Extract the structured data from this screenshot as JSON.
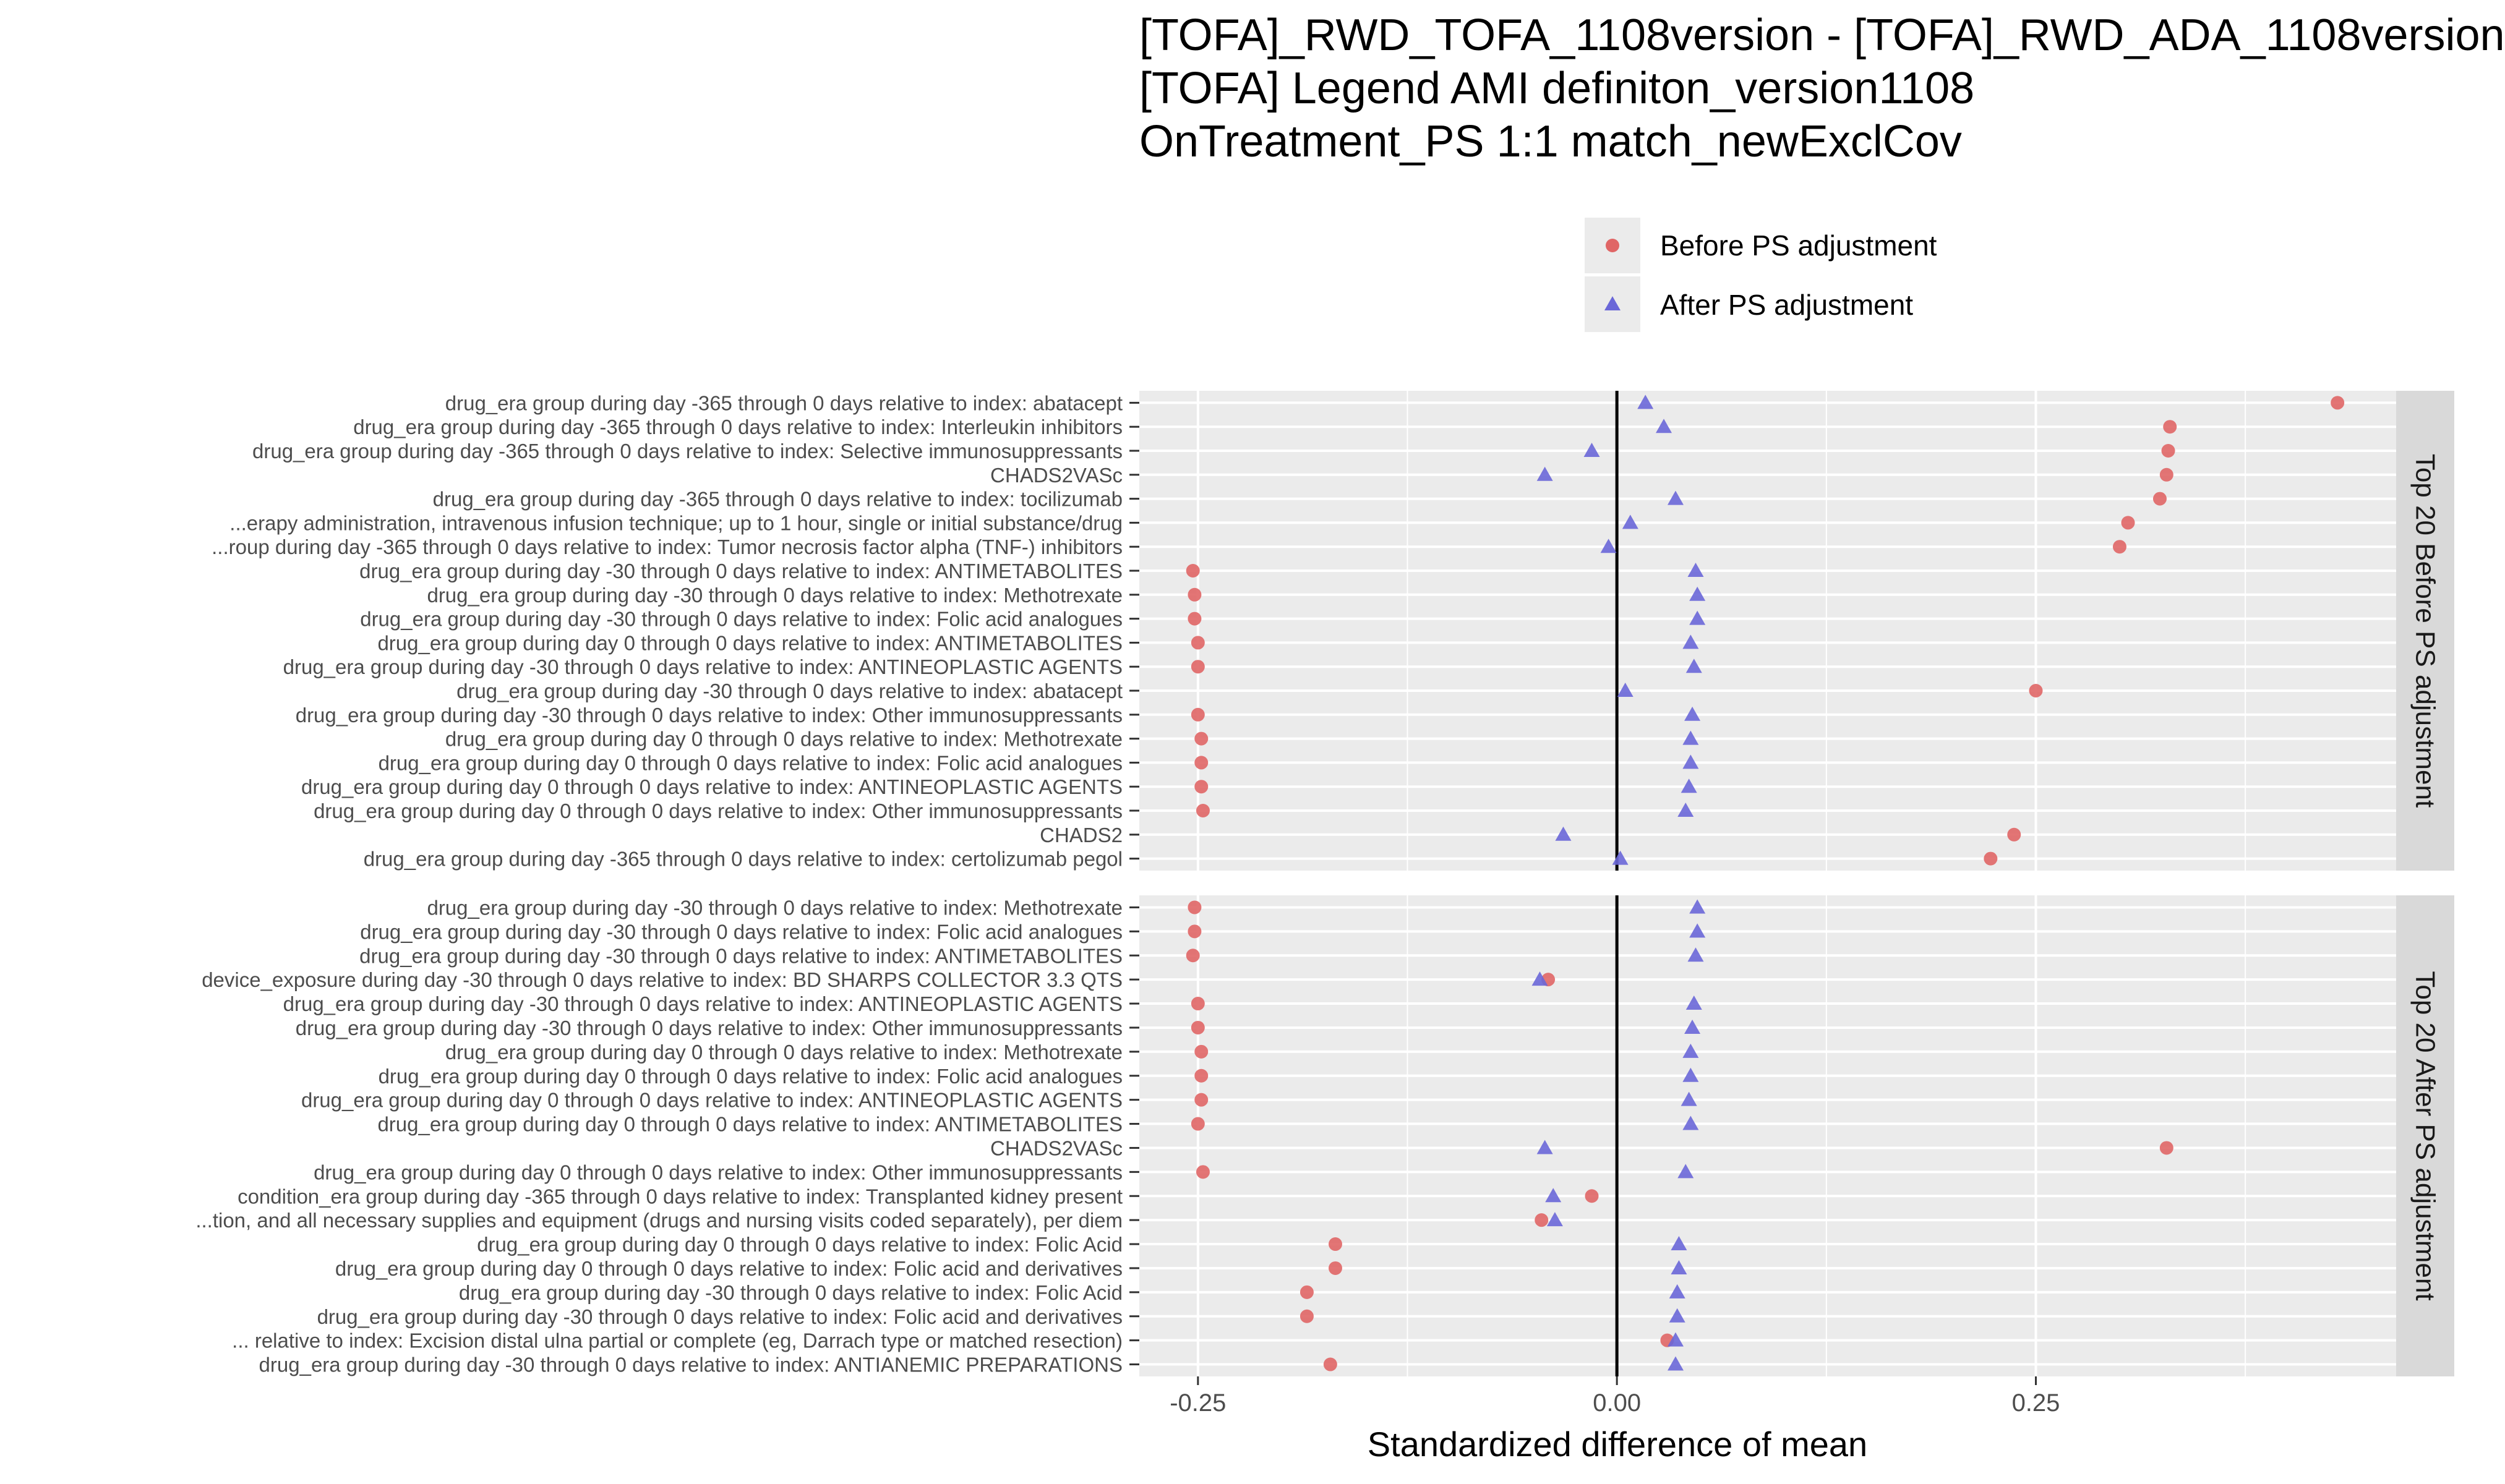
{
  "chart_data": {
    "type": "scatter",
    "title_lines": [
      "[TOFA]_RWD_TOFA_1108version - [TOFA]_RWD_ADA_1108version",
      "[TOFA] Legend AMI definiton_version1108",
      "OnTreatment_PS 1:1 match_newExclCov"
    ],
    "xlabel": "Standardized difference of mean",
    "x_ticks": [
      -0.25,
      0,
      0.25
    ],
    "x_tick_labels": [
      "-0.25",
      "0.00",
      "0.25"
    ],
    "xlim": [
      -0.285,
      0.465
    ],
    "grid": true,
    "reference_line_x": 0,
    "legend": {
      "placement": "top",
      "entries": [
        {
          "name": "Before PS adjustment",
          "shape": "circle",
          "color": "#E06666"
        },
        {
          "name": "After PS adjustment",
          "shape": "triangle",
          "color": "#6A67D8"
        }
      ]
    },
    "panels": [
      {
        "strip_label": "Top 20 Before PS adjustment",
        "rows": [
          {
            "label": "drug_era group during day -365 through 0 days relative to index: abatacept",
            "before": 0.43,
            "after": 0.017
          },
          {
            "label": "drug_era group during day -365 through 0 days relative to index: Interleukin inhibitors",
            "before": 0.33,
            "after": 0.028
          },
          {
            "label": "drug_era group during day -365 through 0 days relative to index: Selective immunosuppressants",
            "before": 0.329,
            "after": -0.015
          },
          {
            "label": "CHADS2VASc",
            "before": 0.328,
            "after": -0.043
          },
          {
            "label": "drug_era group during day -365 through 0 days relative to index: tocilizumab",
            "before": 0.324,
            "after": 0.035
          },
          {
            "label": "...erapy administration, intravenous infusion technique; up to 1 hour, single or initial substance/drug",
            "before": 0.305,
            "after": 0.008
          },
          {
            "label": "...roup during day -365 through 0 days relative to index: Tumor necrosis factor alpha (TNF-) inhibitors",
            "before": 0.3,
            "after": -0.005
          },
          {
            "label": "drug_era group during day -30 through 0 days relative to index: ANTIMETABOLITES",
            "before": -0.253,
            "after": 0.047
          },
          {
            "label": "drug_era group during day -30 through 0 days relative to index: Methotrexate",
            "before": -0.252,
            "after": 0.048
          },
          {
            "label": "drug_era group during day -30 through 0 days relative to index: Folic acid analogues",
            "before": -0.252,
            "after": 0.048
          },
          {
            "label": "drug_era group during day 0 through 0 days relative to index: ANTIMETABOLITES",
            "before": -0.25,
            "after": 0.044
          },
          {
            "label": "drug_era group during day -30 through 0 days relative to index: ANTINEOPLASTIC AGENTS",
            "before": -0.25,
            "after": 0.046
          },
          {
            "label": "drug_era group during day -30 through 0 days relative to index: abatacept",
            "before": 0.25,
            "after": 0.005
          },
          {
            "label": "drug_era group during day -30 through 0 days relative to index: Other immunosuppressants",
            "before": -0.25,
            "after": 0.045
          },
          {
            "label": "drug_era group during day 0 through 0 days relative to index: Methotrexate",
            "before": -0.248,
            "after": 0.044
          },
          {
            "label": "drug_era group during day 0 through 0 days relative to index: Folic acid analogues",
            "before": -0.248,
            "after": 0.044
          },
          {
            "label": "drug_era group during day 0 through 0 days relative to index: ANTINEOPLASTIC AGENTS",
            "before": -0.248,
            "after": 0.043
          },
          {
            "label": "drug_era group during day 0 through 0 days relative to index: Other immunosuppressants",
            "before": -0.247,
            "after": 0.041
          },
          {
            "label": "CHADS2",
            "before": 0.237,
            "after": -0.032
          },
          {
            "label": "drug_era group during day -365 through 0 days relative to index: certolizumab pegol",
            "before": 0.223,
            "after": 0.002
          }
        ]
      },
      {
        "strip_label": "Top 20 After PS adjustment",
        "rows": [
          {
            "label": "drug_era group during day -30 through 0 days relative to index: Methotrexate",
            "before": -0.252,
            "after": 0.048
          },
          {
            "label": "drug_era group during day -30 through 0 days relative to index: Folic acid analogues",
            "before": -0.252,
            "after": 0.048
          },
          {
            "label": "drug_era group during day -30 through 0 days relative to index: ANTIMETABOLITES",
            "before": -0.253,
            "after": 0.047
          },
          {
            "label": "device_exposure during day -30 through 0 days relative to index: BD SHARPS COLLECTOR 3.3 QTS",
            "before": -0.041,
            "after": -0.046
          },
          {
            "label": "drug_era group during day -30 through 0 days relative to index: ANTINEOPLASTIC AGENTS",
            "before": -0.25,
            "after": 0.046
          },
          {
            "label": "drug_era group during day -30 through 0 days relative to index: Other immunosuppressants",
            "before": -0.25,
            "after": 0.045
          },
          {
            "label": "drug_era group during day 0 through 0 days relative to index: Methotrexate",
            "before": -0.248,
            "after": 0.044
          },
          {
            "label": "drug_era group during day 0 through 0 days relative to index: Folic acid analogues",
            "before": -0.248,
            "after": 0.044
          },
          {
            "label": "drug_era group during day 0 through 0 days relative to index: ANTINEOPLASTIC AGENTS",
            "before": -0.248,
            "after": 0.043
          },
          {
            "label": "drug_era group during day 0 through 0 days relative to index: ANTIMETABOLITES",
            "before": -0.25,
            "after": 0.044
          },
          {
            "label": "CHADS2VASc",
            "before": 0.328,
            "after": -0.043
          },
          {
            "label": "drug_era group during day 0 through 0 days relative to index: Other immunosuppressants",
            "before": -0.247,
            "after": 0.041
          },
          {
            "label": "condition_era group during day -365 through 0 days relative to index: Transplanted kidney present",
            "before": -0.015,
            "after": -0.038
          },
          {
            "label": "...tion, and all necessary supplies and equipment (drugs and nursing visits coded separately), per diem",
            "before": -0.045,
            "after": -0.037
          },
          {
            "label": "drug_era group during day 0 through 0 days relative to index: Folic Acid",
            "before": -0.168,
            "after": 0.037
          },
          {
            "label": "drug_era group during day 0 through 0 days relative to index: Folic acid and derivatives",
            "before": -0.168,
            "after": 0.037
          },
          {
            "label": "drug_era group during day -30 through 0 days relative to index: Folic Acid",
            "before": -0.185,
            "after": 0.036
          },
          {
            "label": "drug_era group during day -30 through 0 days relative to index: Folic acid and derivatives",
            "before": -0.185,
            "after": 0.036
          },
          {
            "label": "... relative to index: Excision distal ulna partial or complete (eg, Darrach type or matched resection)",
            "before": 0.03,
            "after": 0.035
          },
          {
            "label": "drug_era group during day -30 through 0 days relative to index: ANTIANEMIC PREPARATIONS",
            "before": -0.171,
            "after": 0.035
          }
        ]
      }
    ]
  }
}
